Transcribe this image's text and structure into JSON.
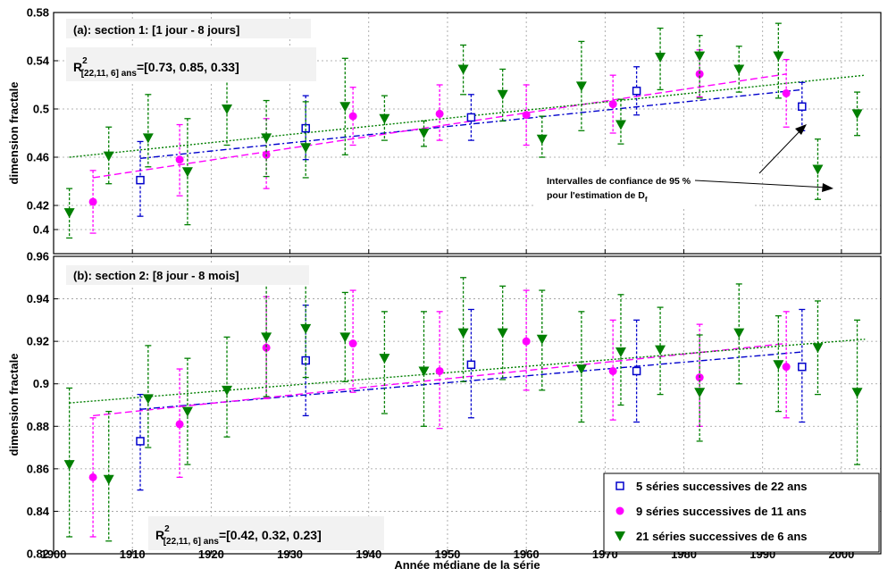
{
  "chart_data": [
    {
      "type": "scatter",
      "panel_label": "(a): section 1: [1 jour - 8 jours]",
      "r2": {
        "prefix": "R",
        "sup": "2",
        "sub": "[22,11, 6] ans",
        "value": "=[0.73, 0.85, 0.33]"
      },
      "ylabel": "dimension fractale",
      "xlim": [
        1900,
        2005
      ],
      "ylim": [
        0.38,
        0.58
      ],
      "y_ticks": [
        "0.4",
        "0.42",
        "0.46",
        "0.5",
        "0.54",
        "0.58"
      ],
      "y_tick_values": [
        0.4,
        0.42,
        0.46,
        0.5,
        0.54,
        0.58
      ],
      "grid": true,
      "annotation": {
        "line1": "Intervalles de confiance de 95 %",
        "line2": "pour l'estimation de D",
        "sub": "f"
      },
      "series": [
        {
          "marker": "square",
          "color": "#0000cc",
          "x": [
            1911,
            1932,
            1953,
            1974,
            1995
          ],
          "y": [
            0.441,
            0.484,
            0.493,
            0.515,
            0.502
          ],
          "lo": [
            0.411,
            0.458,
            0.474,
            0.495,
            0.482
          ],
          "hi": [
            0.473,
            0.511,
            0.512,
            0.535,
            0.522
          ],
          "trend": [
            [
              1911,
              0.459
            ],
            [
              1995,
              0.516
            ]
          ]
        },
        {
          "marker": "circle",
          "color": "#ff00ff",
          "x": [
            1905,
            1916,
            1927,
            1938,
            1949,
            1960,
            1971,
            1982,
            1993
          ],
          "y": [
            0.423,
            0.458,
            0.462,
            0.494,
            0.496,
            0.495,
            0.504,
            0.529,
            0.513
          ],
          "lo": [
            0.397,
            0.428,
            0.434,
            0.47,
            0.474,
            0.47,
            0.48,
            0.51,
            0.485
          ],
          "hi": [
            0.449,
            0.487,
            0.492,
            0.518,
            0.52,
            0.52,
            0.528,
            0.549,
            0.541
          ],
          "trend": [
            [
              1905,
              0.443
            ],
            [
              1993,
              0.529
            ]
          ]
        },
        {
          "marker": "triangle",
          "color": "#007f00",
          "x": [
            1902,
            1907,
            1912,
            1917,
            1922,
            1927,
            1932,
            1937,
            1942,
            1947,
            1952,
            1957,
            1962,
            1967,
            1972,
            1977,
            1982,
            1987,
            1992,
            1997,
            2002
          ],
          "y": [
            0.414,
            0.461,
            0.476,
            0.448,
            0.5,
            0.476,
            0.468,
            0.502,
            0.492,
            0.48,
            0.533,
            0.512,
            0.475,
            0.519,
            0.487,
            0.543,
            0.544,
            0.533,
            0.544,
            0.45,
            0.496
          ],
          "lo": [
            0.393,
            0.438,
            0.452,
            0.404,
            0.47,
            0.444,
            0.443,
            0.462,
            0.474,
            0.469,
            0.512,
            0.49,
            0.46,
            0.482,
            0.471,
            0.516,
            0.509,
            0.514,
            0.509,
            0.425,
            0.478
          ],
          "hi": [
            0.434,
            0.485,
            0.512,
            0.492,
            0.533,
            0.507,
            0.506,
            0.542,
            0.511,
            0.49,
            0.553,
            0.533,
            0.494,
            0.556,
            0.508,
            0.567,
            0.561,
            0.552,
            0.571,
            0.475,
            0.514
          ],
          "trend": [
            [
              1902,
              0.46
            ],
            [
              2003,
              0.528
            ]
          ]
        }
      ]
    },
    {
      "type": "scatter",
      "panel_label": "(b): section 2: [8 jour - 8 mois]",
      "r2": {
        "prefix": "R",
        "sup": "2",
        "sub": "[22,11, 6] ans",
        "value": "=[0.42, 0.32, 0.23]"
      },
      "ylabel": "dimension fractale",
      "xlabel": "Année médiane de la série",
      "xlim": [
        1900,
        2005
      ],
      "ylim": [
        0.82,
        0.96
      ],
      "x_ticks": [
        "1900",
        "1910",
        "1920",
        "1930",
        "1940",
        "1950",
        "1960",
        "1970",
        "1980",
        "1990",
        "2000"
      ],
      "x_tick_values": [
        1900,
        1910,
        1920,
        1930,
        1940,
        1950,
        1960,
        1970,
        1980,
        1990,
        2000
      ],
      "y_ticks": [
        "0.82",
        "0.84",
        "0.86",
        "0.88",
        "0.9",
        "0.92",
        "0.94",
        "0.96"
      ],
      "y_tick_values": [
        0.82,
        0.84,
        0.86,
        0.88,
        0.9,
        0.92,
        0.94,
        0.96
      ],
      "grid": true,
      "legend": {
        "placement": "lower-right",
        "entries": [
          "5 séries successives de 22 ans",
          "9 séries successives de 11 ans",
          "21 séries successives de 6 ans"
        ]
      },
      "series": [
        {
          "marker": "square",
          "color": "#0000cc",
          "x": [
            1911,
            1932,
            1953,
            1974,
            1995
          ],
          "y": [
            0.873,
            0.911,
            0.909,
            0.906,
            0.908
          ],
          "lo": [
            0.85,
            0.885,
            0.884,
            0.882,
            0.882
          ],
          "hi": [
            0.895,
            0.937,
            0.935,
            0.93,
            0.935
          ],
          "trend": [
            [
              1911,
              0.888
            ],
            [
              1995,
              0.915
            ]
          ]
        },
        {
          "marker": "circle",
          "color": "#ff00ff",
          "x": [
            1905,
            1916,
            1927,
            1938,
            1949,
            1960,
            1971,
            1982,
            1993
          ],
          "y": [
            0.856,
            0.881,
            0.917,
            0.919,
            0.906,
            0.92,
            0.906,
            0.903,
            0.908
          ],
          "lo": [
            0.828,
            0.856,
            0.893,
            0.896,
            0.879,
            0.897,
            0.883,
            0.88,
            0.884
          ],
          "hi": [
            0.884,
            0.907,
            0.941,
            0.944,
            0.934,
            0.944,
            0.93,
            0.928,
            0.934
          ],
          "trend": [
            [
              1905,
              0.885
            ],
            [
              1993,
              0.919
            ]
          ]
        },
        {
          "marker": "triangle",
          "color": "#007f00",
          "x": [
            1902,
            1907,
            1912,
            1917,
            1922,
            1927,
            1932,
            1937,
            1942,
            1947,
            1952,
            1957,
            1962,
            1967,
            1972,
            1977,
            1982,
            1987,
            1992,
            1997,
            2002
          ],
          "y": [
            0.862,
            0.855,
            0.893,
            0.887,
            0.897,
            0.922,
            0.926,
            0.922,
            0.912,
            0.906,
            0.924,
            0.924,
            0.921,
            0.907,
            0.915,
            0.916,
            0.896,
            0.924,
            0.909,
            0.917,
            0.896
          ],
          "lo": [
            0.828,
            0.826,
            0.87,
            0.862,
            0.875,
            0.894,
            0.903,
            0.901,
            0.886,
            0.88,
            0.901,
            0.902,
            0.897,
            0.882,
            0.89,
            0.895,
            0.873,
            0.9,
            0.887,
            0.895,
            0.862
          ],
          "hi": [
            0.898,
            0.887,
            0.918,
            0.912,
            0.922,
            0.95,
            0.95,
            0.943,
            0.934,
            0.934,
            0.95,
            0.946,
            0.944,
            0.934,
            0.942,
            0.936,
            0.923,
            0.947,
            0.932,
            0.939,
            0.93
          ],
          "trend": [
            [
              1902,
              0.891
            ],
            [
              2003,
              0.921
            ]
          ]
        }
      ]
    }
  ]
}
